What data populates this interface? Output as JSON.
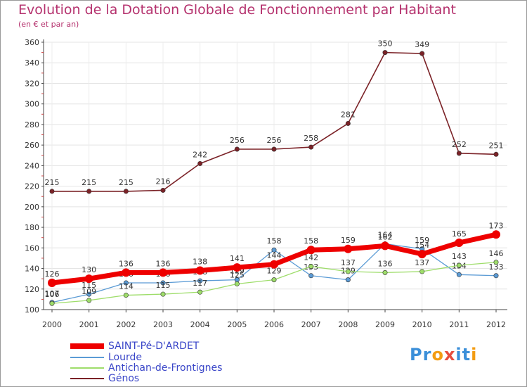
{
  "chart_data": {
    "type": "line",
    "title": "Evolution de la Dotation Globale de Fonctionnement par Habitant",
    "subtitle": "(en € et par an)",
    "xlabel": "",
    "ylabel": "",
    "categories": [
      "2000",
      "2001",
      "2002",
      "2003",
      "2004",
      "2005",
      "2006",
      "2007",
      "2008",
      "2009",
      "2010",
      "2011",
      "2012"
    ],
    "ylim": [
      100,
      360
    ],
    "yticks": [
      100,
      120,
      140,
      160,
      180,
      200,
      220,
      240,
      260,
      280,
      300,
      320,
      340,
      360
    ],
    "series": [
      {
        "name": "Génos",
        "color": "#7b2227",
        "values": [
          215,
          215,
          215,
          216,
          242,
          256,
          256,
          258,
          281,
          350,
          349,
          252,
          251
        ]
      },
      {
        "name": "Lourde",
        "color": "#5b9bd5",
        "values": [
          107,
          115,
          126,
          126,
          128,
          129,
          158,
          133,
          129,
          164,
          159,
          134,
          133
        ]
      },
      {
        "name": "Antichan-de-Frontignes",
        "color": "#9edd6a",
        "values": [
          106,
          109,
          114,
          115,
          117,
          125,
          129,
          142,
          137,
          136,
          137,
          143,
          146
        ]
      },
      {
        "name": "SAINT-Pé-D'ARDET",
        "color": "#ee0000",
        "values": [
          126,
          130,
          136,
          136,
          138,
          141,
          144,
          158,
          159,
          162,
          154,
          165,
          173
        ]
      }
    ],
    "legend": [
      "SAINT-Pé-D'ARDET",
      "Lourde",
      "Antichan-de-Frontignes",
      "Génos"
    ]
  },
  "logo": {
    "text": "Proxiti",
    "letters": [
      "P",
      "r",
      "o",
      "x",
      "i",
      "t",
      "i"
    ],
    "colors": [
      "#3b8fd9",
      "#3b8fd9",
      "#f39c12",
      "#e74c3c",
      "#3b8fd9",
      "#3b8fd9",
      "#f39c12"
    ]
  }
}
